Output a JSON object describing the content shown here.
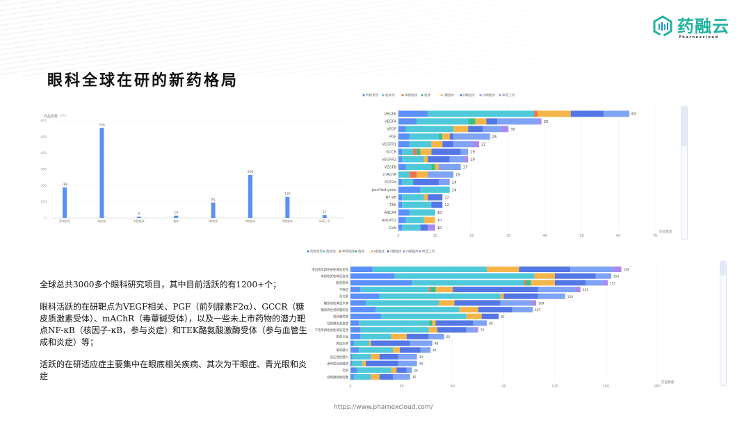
{
  "header": {
    "title": "眼科全球在研的新药格局"
  },
  "logo": {
    "name": "药融云",
    "subtitle": "Pharnexcloud",
    "color": "#1fb3a0"
  },
  "text": {
    "p1": "全球总共3000多个眼科研究项目，其中目前活跃的有1200+个；",
    "p2": "眼科活跃的在研靶点为VEGF相关、PGF（前列腺素F2α）、GCCR（糖皮质激素受体）、mAChR（毒蕈碱受体），以及一些未上市药物的潜力靶点NF-κB（核因子-κB，参与炎症）和TEK酪氨酸激酶受体（参与血管生成和炎症）等；",
    "p3": "活跃的在研适应症主要集中在眼底相关疾病、其次为干眼症、青光眼和炎症"
  },
  "footer": {
    "url": "https://www.pharnexcloud.com/"
  },
  "phases": [
    "药物发现",
    "临床前",
    "申报临床",
    "临床",
    "I期临床",
    "II期临床",
    "III期临床",
    "申请上市"
  ],
  "phase_colors": [
    "#5b8ff9",
    "#4fc9d9",
    "#f0744c",
    "#38c08a",
    "#f6b54a",
    "#5477e6",
    "#7fa3f5",
    "#a98bf0"
  ],
  "chart_data": [
    {
      "type": "bar",
      "ylabel": "药品数量（个）",
      "categories": [
        "药物发现",
        "临床前",
        "申报临床",
        "临床",
        "I期临床",
        "II期临床",
        "III期临床",
        "申请上市"
      ],
      "values": [
        188,
        556,
        8,
        14,
        95,
        266,
        130,
        17
      ],
      "ylim": [
        0,
        600
      ],
      "yticks": [
        0,
        100,
        200,
        300,
        400,
        500,
        600
      ],
      "color": "#5b8ff9",
      "grid": true
    },
    {
      "type": "bar",
      "orientation": "horizontal",
      "stacked": true,
      "xlabel": "药品数量",
      "xlim": [
        0,
        70
      ],
      "xticks": [
        0,
        10,
        20,
        30,
        40,
        50,
        60,
        70
      ],
      "legend": "top-left",
      "categories": [
        "VEGFR",
        "VEGFA",
        "VEGF",
        "PGF",
        "VEGFR1",
        "GCCR",
        "VEGFR2",
        "VEGFB",
        "mAChR",
        "PGF2α",
        "pecified gene",
        "NF-κB",
        "TEK",
        "ABCA4",
        "ANGPT2",
        "CaN"
      ],
      "totals": [
        63,
        39,
        30,
        25,
        22,
        19,
        19,
        17,
        15,
        14,
        14,
        12,
        12,
        10,
        10,
        10
      ],
      "series": [
        {
          "name": "药物发现",
          "values": [
            8,
            5,
            2,
            3,
            3,
            1,
            1,
            2,
            0,
            1,
            6,
            1,
            1,
            3,
            2,
            1
          ]
        },
        {
          "name": "临床前",
          "values": [
            29,
            14,
            13,
            8,
            6,
            3,
            6,
            7,
            3,
            3,
            8,
            6,
            8,
            7,
            5,
            5
          ]
        },
        {
          "name": "申报临床",
          "values": [
            1,
            0,
            0,
            0,
            0,
            1,
            0,
            0,
            2,
            0,
            0,
            0,
            0,
            0,
            0,
            0
          ]
        },
        {
          "name": "临床",
          "values": [
            0,
            2,
            0,
            1,
            0,
            1,
            0,
            1,
            0,
            0,
            0,
            0,
            0,
            0,
            0,
            0
          ]
        },
        {
          "name": "I期临床",
          "values": [
            9,
            3,
            4,
            2,
            3,
            3,
            1,
            1,
            3,
            0,
            0,
            1,
            0,
            0,
            3,
            0
          ]
        },
        {
          "name": "II期临床",
          "values": [
            9,
            3,
            4,
            1,
            3,
            8,
            6,
            0,
            0,
            7,
            0,
            4,
            3,
            0,
            0,
            2
          ]
        },
        {
          "name": "III期临床",
          "values": [
            7,
            11,
            5,
            10,
            5,
            2,
            4,
            6,
            7,
            3,
            0,
            0,
            0,
            0,
            0,
            0
          ]
        },
        {
          "name": "申请上市",
          "values": [
            0,
            1,
            2,
            0,
            2,
            0,
            1,
            0,
            0,
            0,
            0,
            0,
            0,
            0,
            0,
            2
          ]
        }
      ]
    },
    {
      "type": "bar",
      "orientation": "horizontal",
      "stacked": true,
      "xlabel": "药品数量",
      "xlim": [
        0,
        180
      ],
      "xticks": [
        0,
        30,
        60,
        90,
        120,
        150,
        180
      ],
      "legend": "top-left",
      "categories": [
        "渗出性年龄相关性黄斑变性",
        "年龄相关性黄斑变性",
        "眼部疾病",
        "干眼症",
        "青光眼",
        "糖尿病性黄斑水肿",
        "糖尿病性视网膜病变",
        "视网膜病变",
        "视网膜色素变性",
        "干性年龄相关性黄斑变性",
        "眼部炎症",
        "黄斑水肿",
        "葡萄膜炎",
        "变应性结膜炎",
        "遗传性视网膜病",
        "近视",
        "视网膜静脉阻塞"
      ],
      "totals": [
        159,
        153,
        151,
        135,
        126,
        109,
        107,
        87,
        80,
        75,
        55,
        48,
        47,
        39,
        39,
        36,
        35
      ],
      "series": [
        {
          "name": "药物发现",
          "values": [
            13,
            26,
            36,
            6,
            17,
            9,
            15,
            18,
            5,
            6,
            6,
            2,
            5,
            1,
            1,
            4,
            2
          ]
        },
        {
          "name": "临床前",
          "values": [
            67,
            82,
            66,
            40,
            71,
            43,
            49,
            50,
            41,
            40,
            18,
            9,
            20,
            11,
            6,
            20,
            10
          ]
        },
        {
          "name": "申报临床",
          "values": [
            0,
            0,
            1,
            1,
            0,
            0,
            0,
            0,
            0,
            0,
            0,
            0,
            0,
            0,
            0,
            0,
            0
          ]
        },
        {
          "name": "临床",
          "values": [
            0,
            0,
            3,
            3,
            0,
            0,
            0,
            0,
            2,
            0,
            0,
            0,
            0,
            0,
            0,
            0,
            0
          ]
        },
        {
          "name": "I期临床",
          "values": [
            19,
            12,
            14,
            10,
            2,
            9,
            11,
            9,
            2,
            5,
            9,
            1,
            4,
            5,
            2,
            3,
            5
          ]
        },
        {
          "name": "II期临床",
          "values": [
            30,
            24,
            18,
            50,
            20,
            27,
            20,
            10,
            22,
            17,
            13,
            23,
            12,
            11,
            19,
            6,
            8
          ]
        },
        {
          "name": "III期临床",
          "values": [
            25,
            9,
            10,
            22,
            16,
            18,
            12,
            0,
            8,
            5,
            9,
            13,
            6,
            11,
            11,
            3,
            10
          ]
        },
        {
          "name": "申请上市",
          "values": [
            5,
            0,
            3,
            3,
            0,
            3,
            0,
            0,
            0,
            2,
            0,
            0,
            0,
            0,
            0,
            0,
            0
          ]
        }
      ]
    }
  ]
}
